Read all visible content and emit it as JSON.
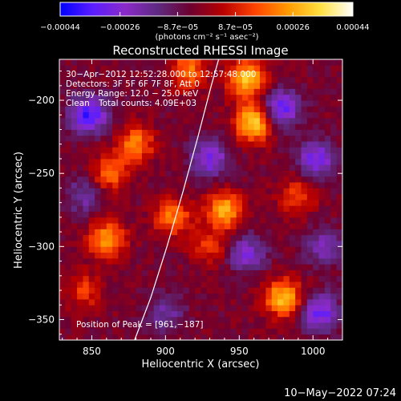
{
  "chart_data": {
    "type": "heatmap",
    "title": "Reconstructed RHESSI Image",
    "xlabel": "Heliocentric X (arcsec)",
    "ylabel": "Heliocentric Y (arcsec)",
    "xlim": [
      828,
      1020
    ],
    "ylim": [
      -364,
      -172
    ],
    "x_ticks": [
      850,
      900,
      950,
      1000
    ],
    "y_ticks": [
      -350,
      -300,
      -250,
      -200
    ],
    "x_tick_labels": [
      "850",
      "900",
      "950",
      "1000"
    ],
    "y_tick_labels": [
      "−350",
      "−300",
      "−250",
      "−200"
    ],
    "colorbar": {
      "range": [
        -0.00044,
        0.00044
      ],
      "ticks": [
        -0.00044,
        -0.00026,
        -8.7e-05,
        8.7e-05,
        0.00026,
        0.00044
      ],
      "tick_labels": [
        "−0.00044",
        "−0.00026",
        "−8.7e−05",
        "8.7e−05",
        "0.00026",
        "0.00044"
      ],
      "units_label": "(photons cm⁻² s⁻¹ asec⁻²)",
      "colors": [
        "#0000ff",
        "#5a1dff",
        "#8b2ac9",
        "#5e2a80",
        "#6c0030",
        "#b80000",
        "#ff4400",
        "#ff9a00",
        "#ffe040",
        "#ffffff"
      ]
    },
    "annotations": {
      "time": "30−Apr−2012 12:52:28.000 to 12:57:48.000",
      "detectors": "Detectors: 3F 5F 6F 7F 8F, Att 0",
      "energy": "Energy Range: 12.0 − 25.0 keV",
      "clean": "Clean",
      "counts": "Total counts: 4.09E+03",
      "peak": "Position of Peak = [961,−187]"
    },
    "limb_curve": [
      [
        879,
        -364
      ],
      [
        890,
        -335
      ],
      [
        901,
        -300
      ],
      [
        912,
        -262
      ],
      [
        922,
        -225
      ],
      [
        931,
        -190
      ],
      [
        936,
        -172
      ]
    ],
    "bright_sources": [
      {
        "x": 960,
        "y": -215,
        "value": 0.00038
      },
      {
        "x": 955,
        "y": -185,
        "value": 0.00035
      },
      {
        "x": 980,
        "y": -335,
        "value": 0.00034
      },
      {
        "x": 940,
        "y": -275,
        "value": 0.00031
      },
      {
        "x": 860,
        "y": -295,
        "value": 0.00028
      },
      {
        "x": 880,
        "y": -230,
        "value": 0.00025
      },
      {
        "x": 862,
        "y": -250,
        "value": 0.00022
      },
      {
        "x": 915,
        "y": -180,
        "value": 0.00024
      },
      {
        "x": 905,
        "y": -280,
        "value": 0.00024
      },
      {
        "x": 990,
        "y": -265,
        "value": 0.00018
      },
      {
        "x": 845,
        "y": -330,
        "value": 0.00016
      },
      {
        "x": 930,
        "y": -300,
        "value": 0.00015
      }
    ],
    "dark_sources": [
      {
        "x": 848,
        "y": -210,
        "value": -0.00033
      },
      {
        "x": 978,
        "y": -205,
        "value": -0.0003
      },
      {
        "x": 1005,
        "y": -345,
        "value": -0.00028
      },
      {
        "x": 1002,
        "y": -240,
        "value": -0.00026
      },
      {
        "x": 930,
        "y": -240,
        "value": -0.00025
      },
      {
        "x": 955,
        "y": -305,
        "value": -0.00022
      },
      {
        "x": 1008,
        "y": -300,
        "value": -0.00018
      },
      {
        "x": 845,
        "y": -265,
        "value": -0.00016
      },
      {
        "x": 900,
        "y": -345,
        "value": -0.00015
      }
    ]
  },
  "footer": {
    "date": "10−May−2022 07:24"
  }
}
